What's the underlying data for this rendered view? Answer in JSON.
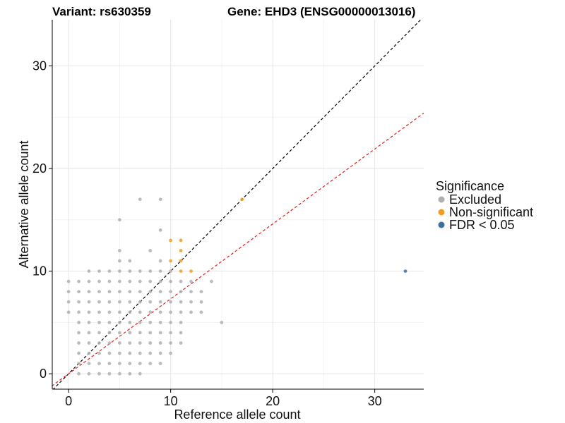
{
  "chart_data": {
    "type": "scatter",
    "title_variant": "Variant: rs630359",
    "title_gene": "Gene: EHD3 (ENSG00000013016)",
    "xlabel": "Reference allele count",
    "ylabel": "Alternative allele count",
    "xlim": [
      -1.6,
      34.8
    ],
    "ylim": [
      -1.5,
      34.5
    ],
    "x_ticks": [
      0,
      10,
      20,
      30
    ],
    "y_ticks": [
      0,
      10,
      20,
      30
    ],
    "grid": true,
    "legend": {
      "title": "Significance",
      "position": "right",
      "entries": [
        {
          "label": "Excluded",
          "color": "#b0b0b0"
        },
        {
          "label": "Non-significant",
          "color": "#f39c1f"
        },
        {
          "label": "FDR < 0.05",
          "color": "#3d6fa0"
        }
      ]
    },
    "reference_lines": [
      {
        "name": "identity",
        "slope": 1.0,
        "intercept": 0,
        "color": "#000000",
        "dash": true
      },
      {
        "name": "fit",
        "slope": 0.73,
        "intercept": 0,
        "color": "#e0201c",
        "dash": true
      }
    ],
    "series": [
      {
        "name": "Excluded",
        "color": "#b0b0b0",
        "points": [
          [
            0,
            6
          ],
          [
            0,
            7
          ],
          [
            0,
            8
          ],
          [
            0,
            9
          ],
          [
            1,
            0
          ],
          [
            1,
            1
          ],
          [
            1,
            2
          ],
          [
            1,
            3
          ],
          [
            1,
            4
          ],
          [
            1,
            5
          ],
          [
            1,
            6
          ],
          [
            1,
            7
          ],
          [
            1,
            8
          ],
          [
            1,
            9
          ],
          [
            2,
            0
          ],
          [
            2,
            1
          ],
          [
            2,
            2
          ],
          [
            2,
            3
          ],
          [
            2,
            4
          ],
          [
            2,
            5
          ],
          [
            2,
            6
          ],
          [
            2,
            7
          ],
          [
            2,
            8
          ],
          [
            2,
            9
          ],
          [
            2,
            10
          ],
          [
            3,
            0
          ],
          [
            3,
            1
          ],
          [
            3,
            2
          ],
          [
            3,
            3
          ],
          [
            3,
            4
          ],
          [
            3,
            5
          ],
          [
            3,
            6
          ],
          [
            3,
            7
          ],
          [
            3,
            8
          ],
          [
            3,
            9
          ],
          [
            3,
            10
          ],
          [
            4,
            0
          ],
          [
            4,
            1
          ],
          [
            4,
            2
          ],
          [
            4,
            3
          ],
          [
            4,
            4
          ],
          [
            4,
            5
          ],
          [
            4,
            6
          ],
          [
            4,
            7
          ],
          [
            4,
            8
          ],
          [
            4,
            9
          ],
          [
            4,
            10
          ],
          [
            5,
            0
          ],
          [
            5,
            1
          ],
          [
            5,
            2
          ],
          [
            5,
            3
          ],
          [
            5,
            4
          ],
          [
            5,
            5
          ],
          [
            5,
            6
          ],
          [
            5,
            7
          ],
          [
            5,
            8
          ],
          [
            5,
            9
          ],
          [
            5,
            10
          ],
          [
            5,
            11
          ],
          [
            5,
            12
          ],
          [
            5,
            15
          ],
          [
            6,
            0
          ],
          [
            6,
            1
          ],
          [
            6,
            2
          ],
          [
            6,
            3
          ],
          [
            6,
            4
          ],
          [
            6,
            5
          ],
          [
            6,
            6
          ],
          [
            6,
            7
          ],
          [
            6,
            8
          ],
          [
            6,
            9
          ],
          [
            6,
            10
          ],
          [
            6,
            11
          ],
          [
            7,
            0
          ],
          [
            7,
            1
          ],
          [
            7,
            2
          ],
          [
            7,
            3
          ],
          [
            7,
            4
          ],
          [
            7,
            5
          ],
          [
            7,
            6
          ],
          [
            7,
            7
          ],
          [
            7,
            8
          ],
          [
            7,
            9
          ],
          [
            7,
            10
          ],
          [
            7,
            17
          ],
          [
            8,
            1
          ],
          [
            8,
            2
          ],
          [
            8,
            3
          ],
          [
            8,
            4
          ],
          [
            8,
            5
          ],
          [
            8,
            6
          ],
          [
            8,
            7
          ],
          [
            8,
            8
          ],
          [
            8,
            9
          ],
          [
            8,
            10
          ],
          [
            8,
            12
          ],
          [
            9,
            1
          ],
          [
            9,
            2
          ],
          [
            9,
            3
          ],
          [
            9,
            4
          ],
          [
            9,
            5
          ],
          [
            9,
            6
          ],
          [
            9,
            7
          ],
          [
            9,
            8
          ],
          [
            9,
            9
          ],
          [
            9,
            10
          ],
          [
            9,
            11
          ],
          [
            9,
            14
          ],
          [
            9,
            17
          ],
          [
            10,
            2
          ],
          [
            10,
            3
          ],
          [
            10,
            4
          ],
          [
            10,
            5
          ],
          [
            10,
            6
          ],
          [
            10,
            7
          ],
          [
            10,
            8
          ],
          [
            10,
            9
          ],
          [
            10,
            10
          ],
          [
            11,
            3
          ],
          [
            11,
            4
          ],
          [
            11,
            5
          ],
          [
            11,
            6
          ],
          [
            11,
            7
          ],
          [
            11,
            8
          ],
          [
            11,
            9
          ],
          [
            12,
            6
          ],
          [
            12,
            7
          ],
          [
            12,
            8
          ],
          [
            12,
            9
          ],
          [
            13,
            6
          ],
          [
            13,
            7
          ],
          [
            13,
            8
          ],
          [
            14,
            9
          ],
          [
            15,
            5
          ]
        ]
      },
      {
        "name": "Non-significant",
        "color": "#f39c1f",
        "points": [
          [
            10,
            11
          ],
          [
            10,
            13
          ],
          [
            11,
            10
          ],
          [
            11,
            11
          ],
          [
            11,
            12
          ],
          [
            11,
            13
          ],
          [
            12,
            10
          ],
          [
            17,
            17
          ]
        ]
      },
      {
        "name": "FDR < 0.05",
        "color": "#3d6fa0",
        "points": [
          [
            33,
            10
          ]
        ]
      }
    ]
  }
}
